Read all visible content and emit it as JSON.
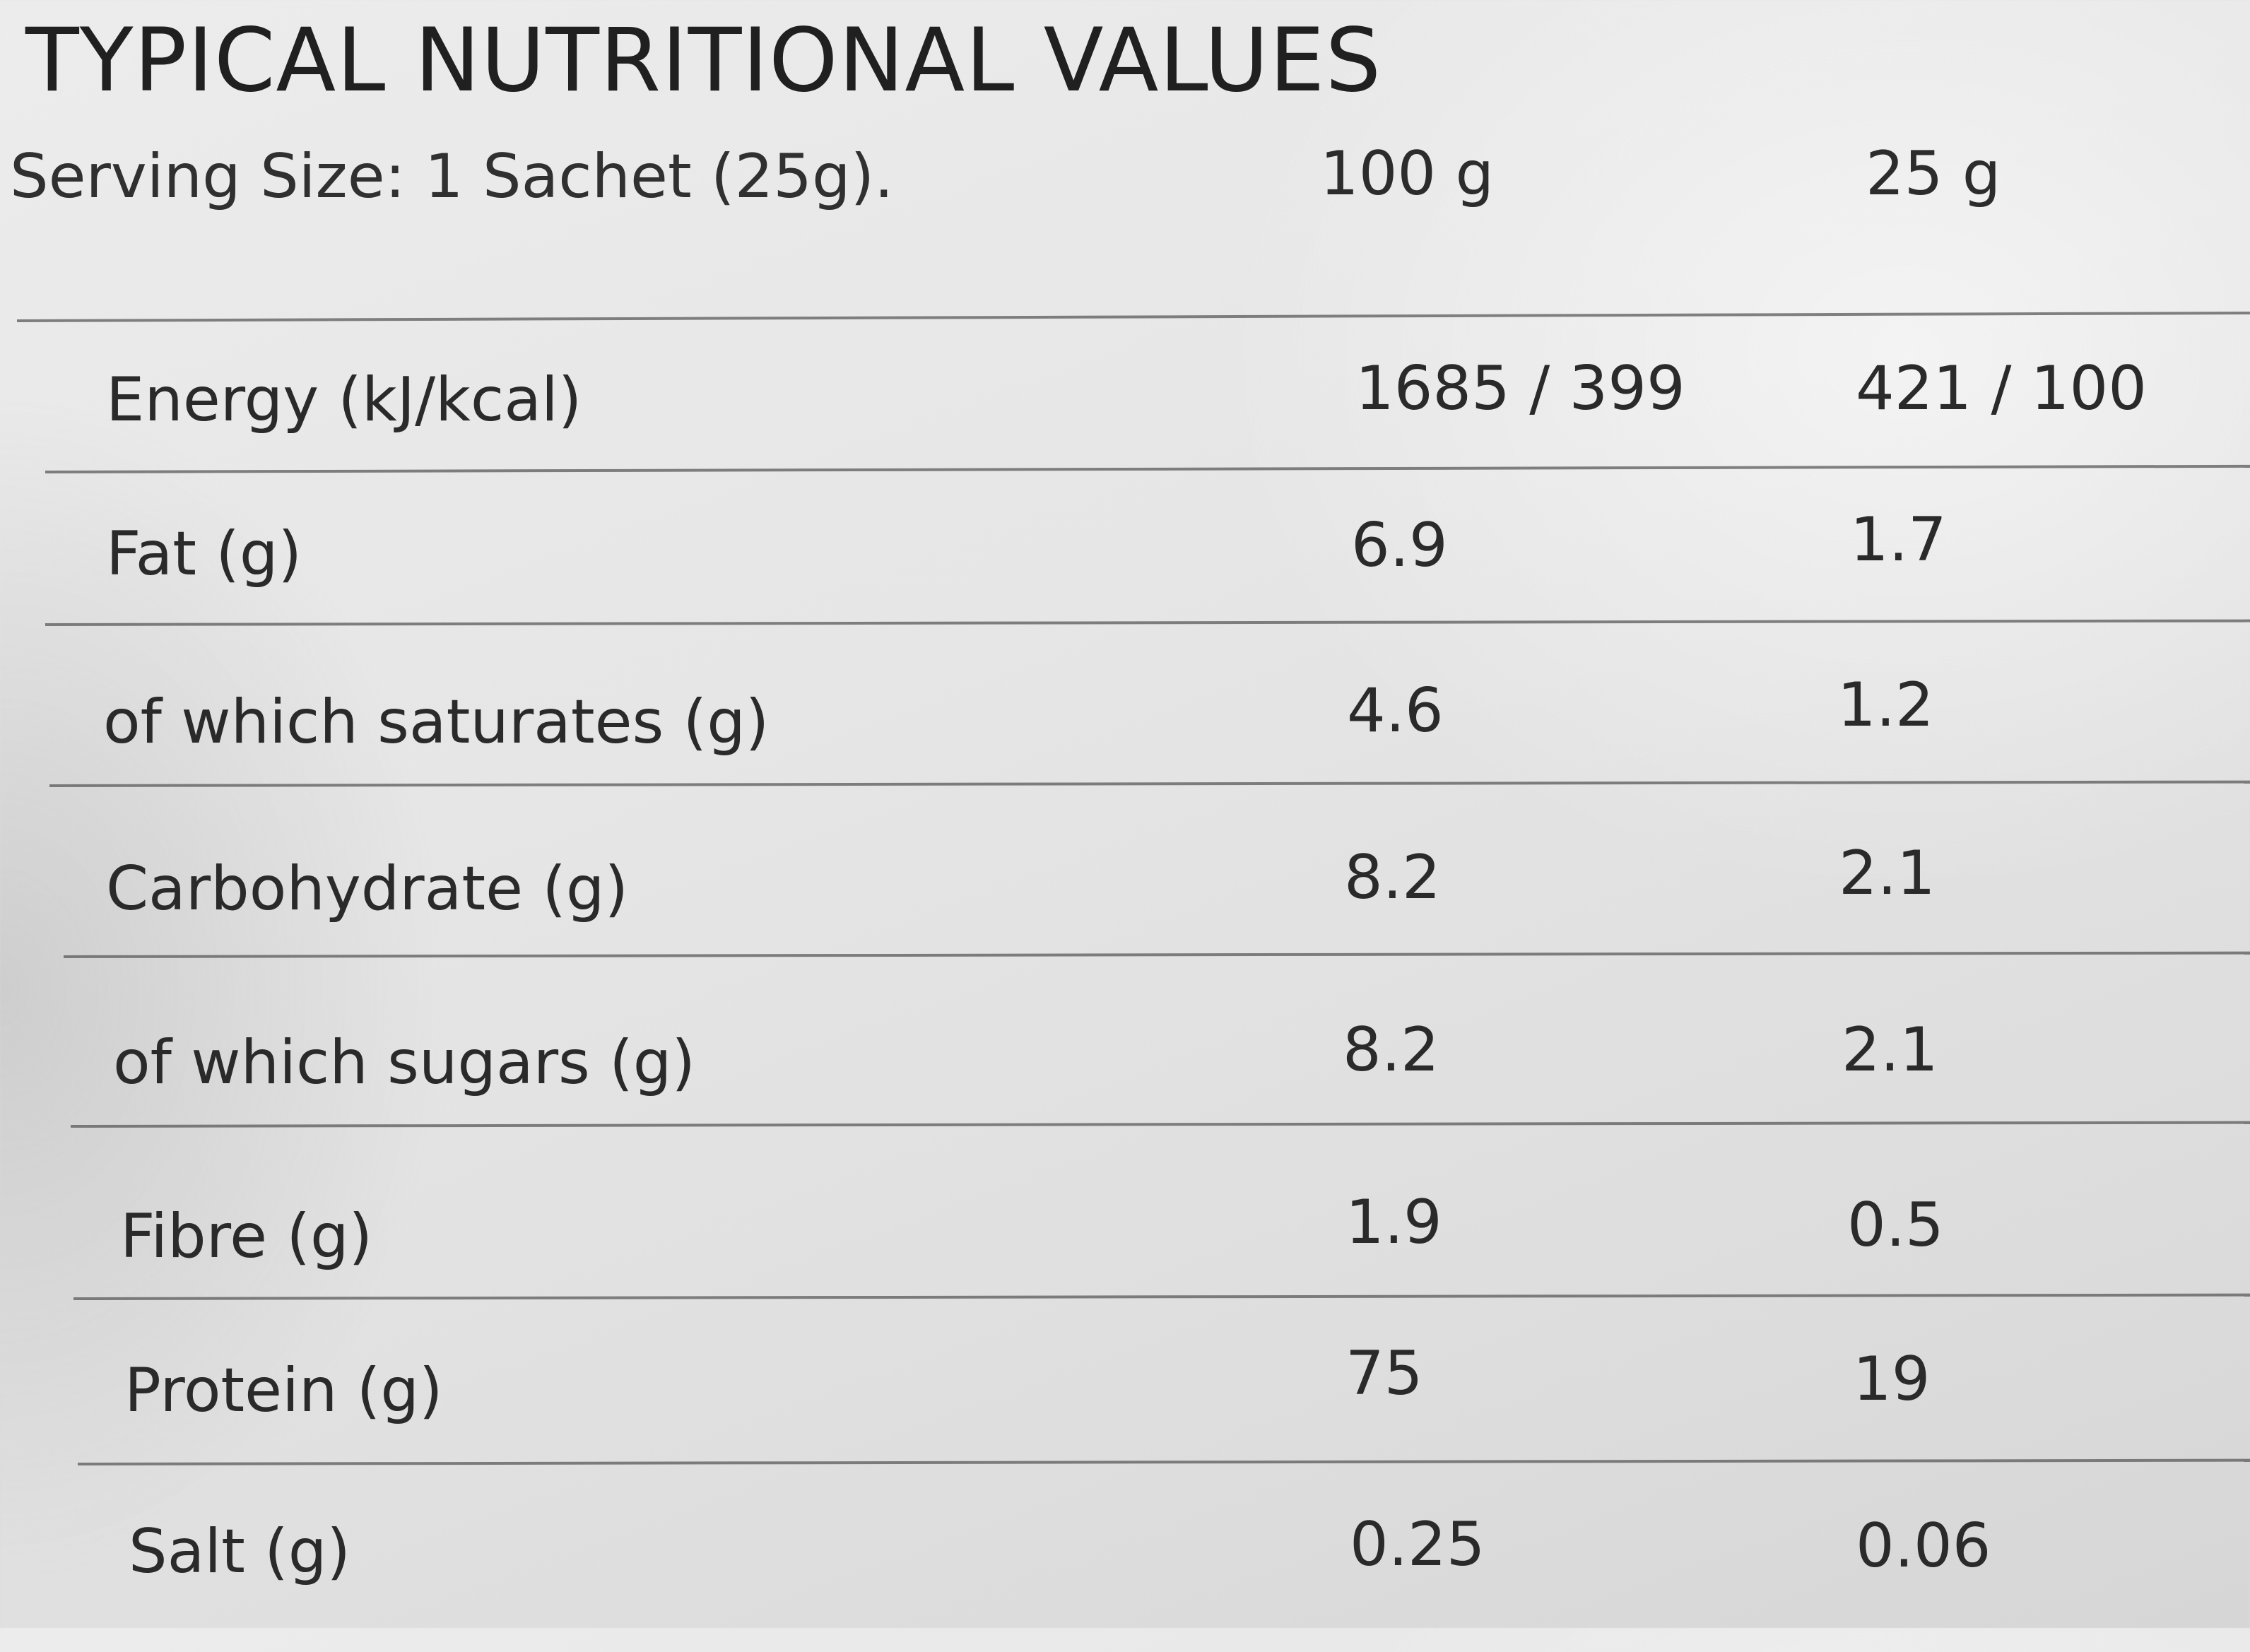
{
  "title": "TYPICAL NUTRITIONAL VALUES",
  "serving_size": "Serving Size: 1 Sachet (25g).",
  "columns": {
    "per_100g": "100 g",
    "per_serving": "25 g"
  },
  "rows": [
    {
      "name": "Energy (kJ/kcal)",
      "per_100g": "1685 / 399",
      "per_serving": "421 / 100"
    },
    {
      "name": "Fat (g)",
      "per_100g": "6.9",
      "per_serving": "1.7"
    },
    {
      "name": "of which saturates (g)",
      "per_100g": "4.6",
      "per_serving": "1.2"
    },
    {
      "name": "Carbohydrate (g)",
      "per_100g": "8.2",
      "per_serving": "2.1"
    },
    {
      "name": "of which sugars (g)",
      "per_100g": "8.2",
      "per_serving": "2.1"
    },
    {
      "name": "Fibre (g)",
      "per_100g": "1.9",
      "per_serving": "0.5"
    },
    {
      "name": "Protein (g)",
      "per_100g": "75",
      "per_serving": "19"
    },
    {
      "name": "Salt (g)",
      "per_100g": "0.25",
      "per_serving": "0.06"
    }
  ]
}
